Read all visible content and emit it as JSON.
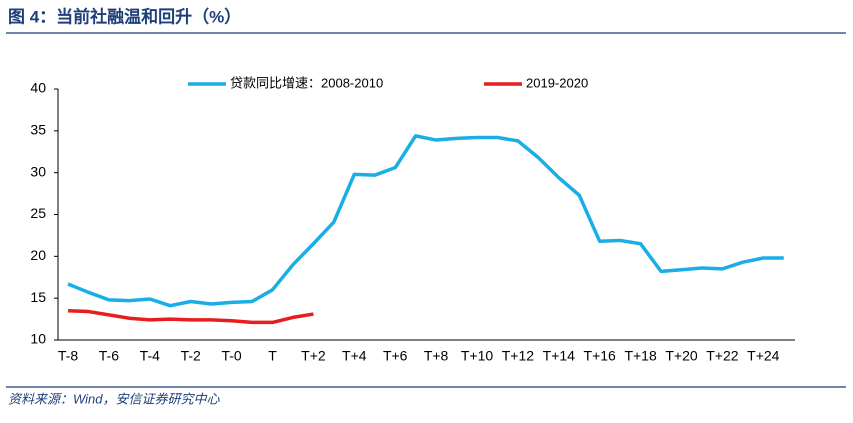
{
  "chart_data": {
    "type": "line",
    "title": "图 4：当前社融温和回升（%）",
    "source": "资料来源：Wind，安信证券研究中心",
    "categories": [
      "T-8",
      null,
      "T-6",
      null,
      "T-4",
      null,
      "T-2",
      null,
      "T-0",
      null,
      "T",
      null,
      "T+2",
      null,
      "T+4",
      null,
      "T+6",
      null,
      "T+8",
      null,
      "T+10",
      null,
      "T+12",
      null,
      "T+14",
      null,
      "T+16",
      null,
      "T+18",
      null,
      "T+20",
      null,
      "T+22",
      null,
      "T+24",
      null
    ],
    "series": [
      {
        "name": "贷款同比增速：2008-2010",
        "color": "#1aaee6",
        "values": [
          16.7,
          15.7,
          14.8,
          14.7,
          14.9,
          14.1,
          14.6,
          14.3,
          14.5,
          14.6,
          16.0,
          19.0,
          21.5,
          24.1,
          29.8,
          29.7,
          30.6,
          34.4,
          33.9,
          34.1,
          34.2,
          34.2,
          33.8,
          31.8,
          29.4,
          27.3,
          21.8,
          21.9,
          21.5,
          18.2,
          18.4,
          18.6,
          18.5,
          19.3,
          19.8,
          19.8
        ]
      },
      {
        "name": "2019-2020",
        "color": "#e61e1e",
        "values": [
          13.5,
          13.4,
          13.0,
          12.6,
          12.4,
          12.5,
          12.4,
          12.4,
          12.3,
          12.1,
          12.1,
          12.7,
          13.1,
          null,
          null,
          null,
          null,
          null,
          null,
          null,
          null,
          null,
          null,
          null,
          null,
          null,
          null,
          null,
          null,
          null,
          null,
          null,
          null,
          null,
          null,
          null
        ]
      }
    ],
    "ylim": [
      10,
      40
    ],
    "yticks": [
      10,
      15,
      20,
      25,
      30,
      35,
      40
    ],
    "grid": false
  }
}
